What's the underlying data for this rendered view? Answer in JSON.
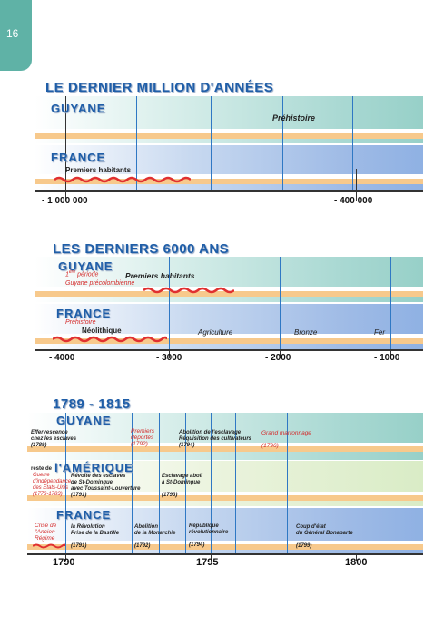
{
  "page": {
    "number": "16"
  },
  "sec1": {
    "title": "LE DERNIER MILLION D'ANNÉES",
    "guyane": "GUYANE",
    "france": "FRANCE",
    "prehistoire": "Préhistoire",
    "premiers": "Premiers habitants",
    "ticks": [
      "- 1 000 000",
      "- 400 000"
    ]
  },
  "sec2": {
    "title": "LES DERNIERS 6000 ANS",
    "guyane": "GUYANE",
    "france": "FRANCE",
    "periode_sup": "ère",
    "periode_1": "1",
    "periode": "période",
    "precolomb": "Guyane précolombienne",
    "premiers": "Premiers habitants",
    "prehistoire": "Préhistoire",
    "neolithique": "Néolithique",
    "agriculture": "Agriculture",
    "bronze": "Bronze",
    "fer": "Fer",
    "ticks": [
      "- 4000",
      "- 3000",
      "- 2000",
      "- 1000"
    ]
  },
  "sec3": {
    "title": "1789 - 1815",
    "guyane": "GUYANE",
    "amerique_pre": "reste de",
    "amerique": "l'AMÉRIQUE",
    "france": "FRANCE",
    "g_effervescence": "Effervescence",
    "g_effervescence2": "chez les esclaves",
    "g_effervescence_y": "(1789)",
    "g_premiers": "Premiers",
    "g_deportes": "déportés",
    "g_deportes_y": "(1792)",
    "g_abolition": "Abolition de l'esclavage",
    "g_requisition": "Réquisition des cultivateurs",
    "g_abolition_y": "(1794)",
    "g_marronnage": "Grand marronnage",
    "g_marronnage_y": "(1796)",
    "a_guerre": "Guerre",
    "a_independance": "d'indépendance",
    "a_etats": "des États-Unis",
    "a_guerre_y": "(1776-1783)",
    "a_revolte": "Révolte des esclaves",
    "a_stdomingue": "de St-Domingue",
    "a_toussaint": "avec Toussaint-Louverture",
    "a_revolte_y": "(1791)",
    "a_esclavage": "Esclavage aboli",
    "a_esclavage2": "à St-Domingue",
    "a_esclavage_y": "(1793)",
    "f_crise": "Crise de",
    "f_ancien": "l'Ancien",
    "f_regime": "Régime",
    "f_revolution": "la Révolution",
    "f_bastille": "Prise de la Bastille",
    "f_revolution_y": "(1791)",
    "f_abolition": "Abolition",
    "f_monarchie": "de la Monarchie",
    "f_monarchie_y": "(1792)",
    "f_republique": "République",
    "f_revolutionnaire": "révolutionnaire",
    "f_republique_y": "(1794)",
    "f_coup": "Coup d'état",
    "f_bonaparte": "du Général Bonaparte",
    "f_coup_y": "(1799)",
    "ticks": [
      "1790",
      "1795",
      "1800"
    ]
  }
}
